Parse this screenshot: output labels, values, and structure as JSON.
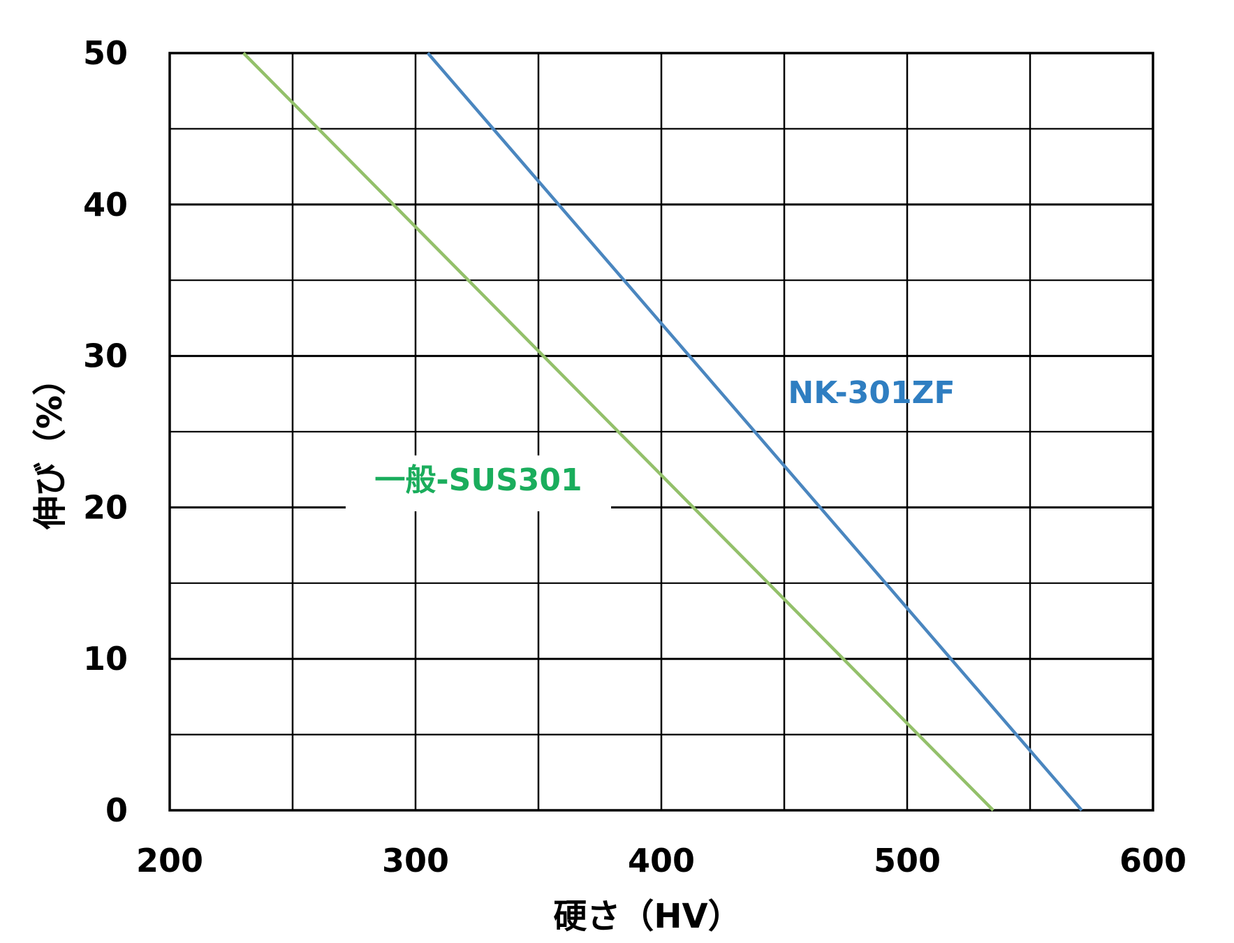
{
  "chart_data": {
    "type": "line",
    "title": "",
    "xlabel": "硬さ（HV）",
    "ylabel": "伸び（%）",
    "xlim": [
      200,
      600
    ],
    "ylim": [
      0,
      50
    ],
    "x_ticks": [
      200,
      300,
      400,
      500,
      600
    ],
    "y_ticks": [
      0,
      10,
      20,
      30,
      40,
      50
    ],
    "x_minor_step": 50,
    "y_minor_step": 5,
    "grid": true,
    "legend": "none",
    "series": [
      {
        "name": "NK-301ZF",
        "color": "#4a86bf",
        "label_color": "#2f7ec1",
        "points": [
          [
            305,
            50
          ],
          [
            571,
            0
          ]
        ]
      },
      {
        "name": "一般-SUS301",
        "color": "#93c06a",
        "label_color": "#1aad5c",
        "points": [
          [
            230,
            50
          ],
          [
            535,
            0
          ]
        ]
      }
    ]
  }
}
